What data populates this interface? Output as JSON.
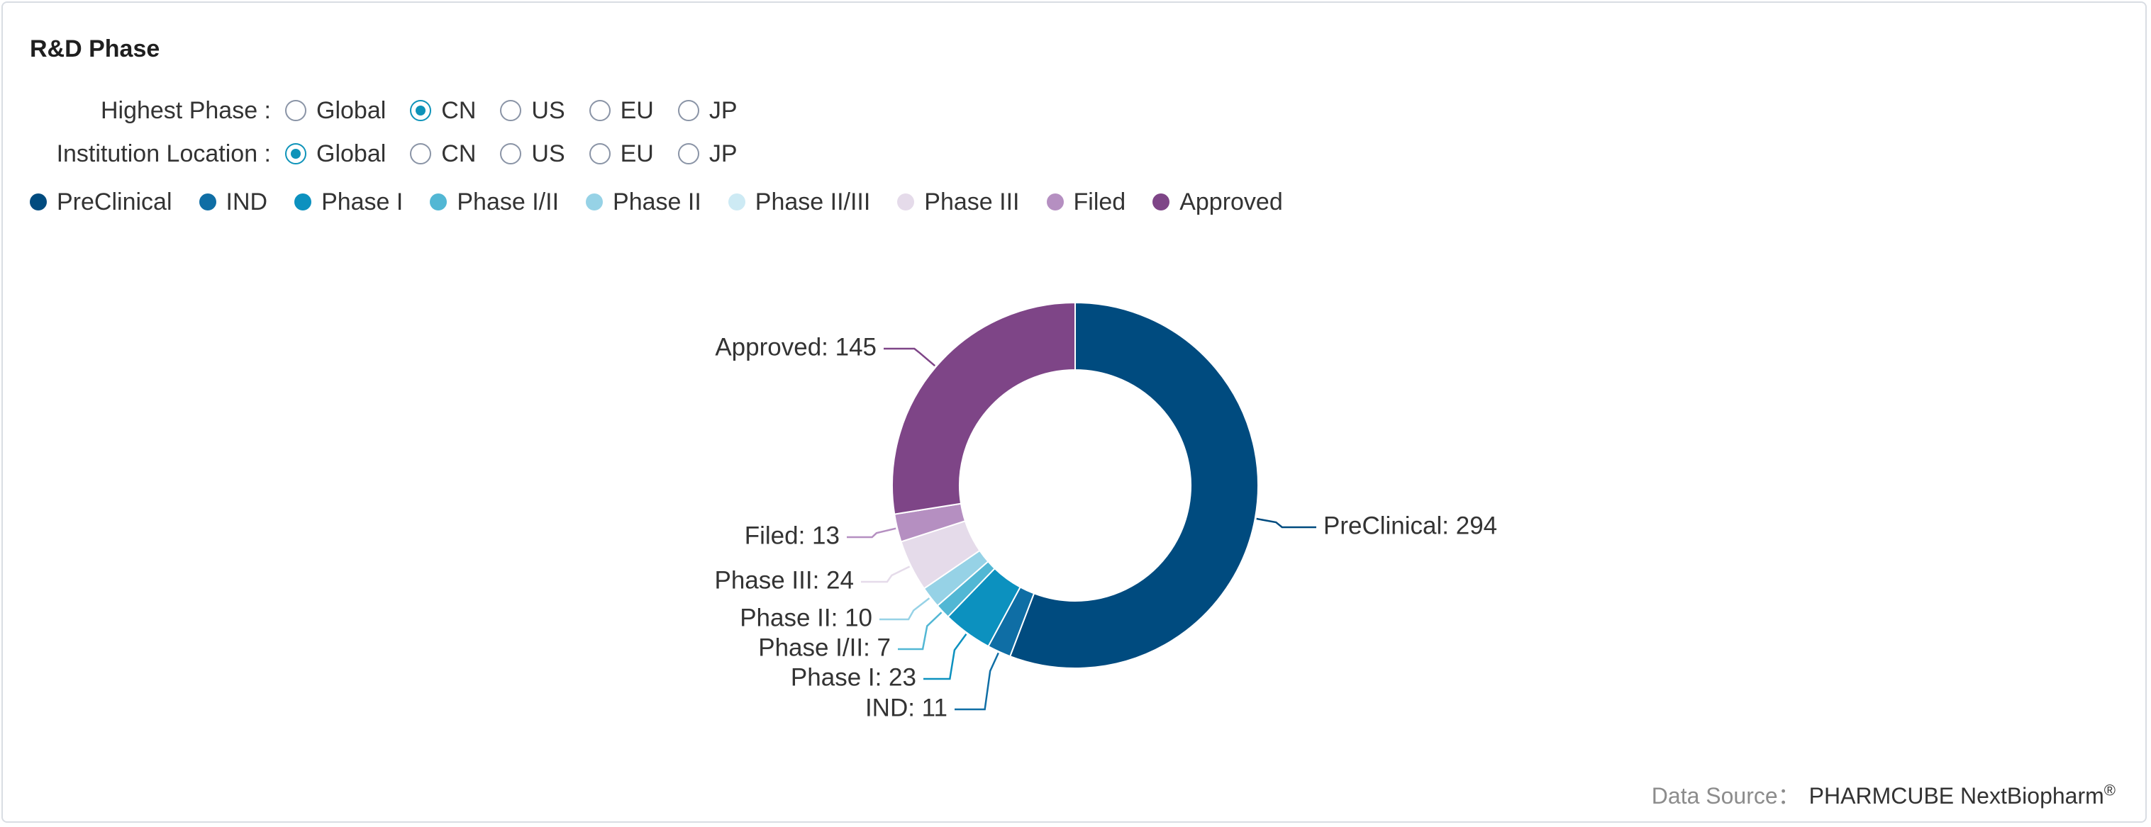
{
  "panel": {
    "title": "R&D Phase"
  },
  "filters": [
    {
      "label": "Highest Phase :",
      "options": [
        "Global",
        "CN",
        "US",
        "EU",
        "JP"
      ],
      "selected": 1
    },
    {
      "label": "Institution Location :",
      "options": [
        "Global",
        "CN",
        "US",
        "EU",
        "JP"
      ],
      "selected": 0
    }
  ],
  "chart_data": {
    "type": "pie",
    "variant": "donut",
    "title": "",
    "legend_position": "top-left",
    "categories": [
      "PreClinical",
      "IND",
      "Phase I",
      "Phase I/II",
      "Phase II",
      "Phase II/III",
      "Phase III",
      "Filed",
      "Approved"
    ],
    "values": [
      294,
      11,
      23,
      7,
      10,
      0,
      24,
      13,
      145
    ],
    "colors": [
      "#004b7f",
      "#0f6ea5",
      "#0c91bf",
      "#52b7d4",
      "#96d2e6",
      "#cdeaf4",
      "#e5dbea",
      "#b58fc1",
      "#7e4587"
    ],
    "label_format": "{name}: {value}"
  },
  "footer": {
    "source_label": "Data Source：",
    "source_brand": "PHARMCUBE NextBiopharm",
    "source_mark": "®"
  }
}
